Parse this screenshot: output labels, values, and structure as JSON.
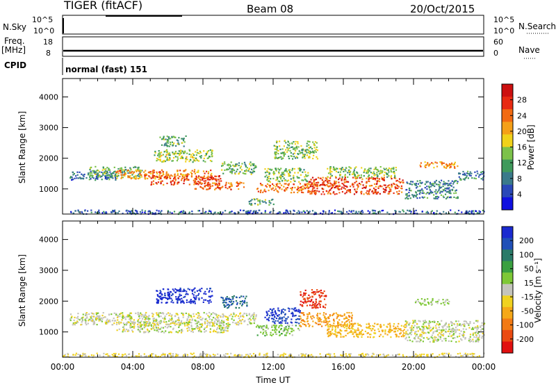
{
  "header": {
    "title": "TIGER (fitACF)",
    "beam": "Beam 08",
    "date": "20/Oct/2015"
  },
  "strips": {
    "nsky_label": "N.Sky",
    "nsearch_label": "N.Search",
    "freq_label": "Freq.",
    "freq_unit": "[MHz]",
    "nave_label": "Nave",
    "cpid_label": "CPID",
    "cpid_text": "normal (fast) 151",
    "log_ticks": [
      "10^5",
      "10^0"
    ],
    "freq_ticks": [
      "18",
      "8"
    ],
    "nave_ticks": [
      "60",
      "0"
    ]
  },
  "colors": {
    "power": [
      "#1010e0",
      "#2a48b8",
      "#3a7a8a",
      "#3f9a5c",
      "#7cc24a",
      "#f0d21a",
      "#f5a018",
      "#f26a12",
      "#e82a12",
      "#cc1010"
    ],
    "velocity_pos": [
      "#1a2ad0",
      "#2050b8",
      "#2a7a68",
      "#3aa040",
      "#7ec836"
    ],
    "velocity_neutral": "#c4c4bc",
    "velocity_neg": [
      "#f0d220",
      "#f5a818",
      "#f27a14",
      "#ea4a12",
      "#e01010"
    ]
  },
  "chart_data": [
    {
      "type": "heatmap",
      "name": "power",
      "ylabel": "Slant Range [km]",
      "yticks": [
        "4000",
        "3000",
        "2000",
        "1000"
      ],
      "ylim": [
        180,
        4600
      ],
      "xlim": [
        0,
        24
      ],
      "colorbar_label": "Power [dB]",
      "colorbar_ticks": [
        "28",
        "24",
        "20",
        "16",
        "12",
        "8",
        "4"
      ],
      "colorbar_range": [
        0,
        32
      ],
      "regions": [
        {
          "t0": 0.4,
          "t1": 3.0,
          "r0": 1300,
          "r1": 1600,
          "v": 8
        },
        {
          "t0": 1.5,
          "t1": 4.5,
          "r0": 1400,
          "r1": 1750,
          "v": 12
        },
        {
          "t0": 3.0,
          "t1": 8.5,
          "r0": 1350,
          "r1": 1650,
          "v": 22
        },
        {
          "t0": 5.0,
          "t1": 9.0,
          "r0": 1150,
          "r1": 1450,
          "v": 26
        },
        {
          "t0": 7.5,
          "t1": 10.3,
          "r0": 1000,
          "r1": 1250,
          "v": 24
        },
        {
          "t0": 5.2,
          "t1": 8.5,
          "r0": 1900,
          "r1": 2300,
          "v": 15
        },
        {
          "t0": 5.5,
          "t1": 7.0,
          "r0": 2400,
          "r1": 2750,
          "v": 12
        },
        {
          "t0": 9.0,
          "t1": 11.0,
          "r0": 1500,
          "r1": 1900,
          "v": 13
        },
        {
          "t0": 11.0,
          "t1": 14.5,
          "r0": 900,
          "r1": 1200,
          "v": 24
        },
        {
          "t0": 11.5,
          "t1": 14.0,
          "r0": 1250,
          "r1": 1700,
          "v": 14
        },
        {
          "t0": 12.0,
          "t1": 14.5,
          "r0": 2000,
          "r1": 2600,
          "v": 14
        },
        {
          "t0": 14.0,
          "t1": 19.4,
          "r0": 850,
          "r1": 1400,
          "v": 26
        },
        {
          "t0": 15.0,
          "t1": 19.0,
          "r0": 1400,
          "r1": 1750,
          "v": 14
        },
        {
          "t0": 19.5,
          "t1": 22.5,
          "r0": 700,
          "r1": 1300,
          "v": 9
        },
        {
          "t0": 20.3,
          "t1": 22.5,
          "r0": 1700,
          "r1": 1900,
          "v": 22
        },
        {
          "t0": 22.5,
          "t1": 24.0,
          "r0": 1300,
          "r1": 1600,
          "v": 9
        },
        {
          "t0": 10.5,
          "t1": 12.0,
          "r0": 500,
          "r1": 700,
          "v": 12
        },
        {
          "t0": 0.0,
          "t1": 24.0,
          "r0": 200,
          "r1": 330,
          "v": 6
        }
      ]
    },
    {
      "type": "heatmap",
      "name": "velocity",
      "ylabel": "Slant Range [km]",
      "xlabel": "Time UT",
      "yticks": [
        "4000",
        "3000",
        "2000",
        "1000"
      ],
      "xticks": [
        "00:00",
        "04:00",
        "08:00",
        "12:00",
        "16:00",
        "20:00",
        "00:00"
      ],
      "ylim": [
        180,
        4600
      ],
      "xlim": [
        0,
        24
      ],
      "colorbar_label": "Velocity [m s⁻¹]",
      "colorbar_ticks": [
        "200",
        "100",
        "50",
        "15",
        "-15",
        "-50",
        "-100",
        "-200"
      ],
      "colorbar_range": [
        -250,
        250
      ],
      "regions": [
        {
          "t0": 0.4,
          "t1": 11.0,
          "r0": 1250,
          "r1": 1650,
          "v": 0
        },
        {
          "t0": 3.0,
          "t1": 9.5,
          "r0": 1000,
          "r1": 1350,
          "v": 0
        },
        {
          "t0": 5.3,
          "t1": 8.5,
          "r0": 1950,
          "r1": 2450,
          "v": 220
        },
        {
          "t0": 9.0,
          "t1": 10.5,
          "r0": 1800,
          "r1": 2200,
          "v": 150
        },
        {
          "t0": 11.0,
          "t1": 13.5,
          "r0": 900,
          "r1": 1250,
          "v": 30
        },
        {
          "t0": 11.5,
          "t1": 13.5,
          "r0": 1300,
          "r1": 1800,
          "v": 200
        },
        {
          "t0": 13.5,
          "t1": 16.5,
          "r0": 1200,
          "r1": 1650,
          "v": -90
        },
        {
          "t0": 15.0,
          "t1": 19.5,
          "r0": 850,
          "r1": 1300,
          "v": -60
        },
        {
          "t0": 13.5,
          "t1": 15.0,
          "r0": 1800,
          "r1": 2400,
          "v": -200
        },
        {
          "t0": 19.5,
          "t1": 24.0,
          "r0": 700,
          "r1": 1400,
          "v": 0
        },
        {
          "t0": 20.0,
          "t1": 22.0,
          "r0": 1900,
          "r1": 2100,
          "v": 20
        },
        {
          "t0": 0.0,
          "t1": 24.0,
          "r0": 200,
          "r1": 330,
          "v": -20
        }
      ]
    }
  ]
}
